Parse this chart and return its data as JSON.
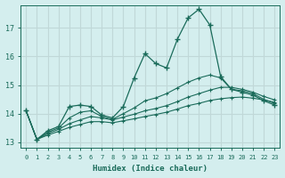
{
  "xlabel": "Humidex (Indice chaleur)",
  "bg_color": "#d4eeee",
  "grid_color": "#c0d8d8",
  "line_color": "#1a6b5a",
  "xlim": [
    -0.5,
    23.5
  ],
  "ylim": [
    12.8,
    17.8
  ],
  "yticks": [
    13,
    14,
    15,
    16,
    17
  ],
  "xticks": [
    0,
    1,
    2,
    3,
    4,
    5,
    6,
    7,
    8,
    9,
    10,
    11,
    12,
    13,
    14,
    15,
    16,
    17,
    18,
    19,
    20,
    21,
    22,
    23
  ],
  "line1_x": [
    0,
    1,
    2,
    3,
    4,
    5,
    6,
    7,
    8,
    9,
    10,
    11,
    12,
    13,
    14,
    15,
    16,
    17,
    18,
    19,
    20,
    21,
    22,
    23
  ],
  "line1_y": [
    14.1,
    13.1,
    13.4,
    13.55,
    14.25,
    14.3,
    14.25,
    13.95,
    13.85,
    14.25,
    15.25,
    16.1,
    15.75,
    15.6,
    16.6,
    17.35,
    17.65,
    17.1,
    15.3,
    14.85,
    14.75,
    14.65,
    14.45,
    14.3
  ],
  "line2_x": [
    0,
    1,
    2,
    3,
    4,
    5,
    6,
    7,
    8,
    9,
    10,
    11,
    12,
    13,
    14,
    15,
    16,
    17,
    18,
    19,
    20,
    21,
    22,
    23
  ],
  "line2_y": [
    14.1,
    13.1,
    13.35,
    13.5,
    13.85,
    14.05,
    14.1,
    13.9,
    13.8,
    14.0,
    14.2,
    14.45,
    14.55,
    14.7,
    14.9,
    15.1,
    15.25,
    15.35,
    15.25,
    14.85,
    14.8,
    14.7,
    14.5,
    14.35
  ],
  "line3_x": [
    0,
    1,
    2,
    3,
    4,
    5,
    6,
    7,
    8,
    9,
    10,
    11,
    12,
    13,
    14,
    15,
    16,
    17,
    18,
    19,
    20,
    21,
    22,
    23
  ],
  "line3_y": [
    14.1,
    13.1,
    13.3,
    13.45,
    13.65,
    13.78,
    13.9,
    13.85,
    13.78,
    13.88,
    13.98,
    14.1,
    14.18,
    14.28,
    14.42,
    14.58,
    14.7,
    14.82,
    14.92,
    14.92,
    14.85,
    14.75,
    14.6,
    14.48
  ],
  "line4_x": [
    0,
    1,
    2,
    3,
    4,
    5,
    6,
    7,
    8,
    9,
    10,
    11,
    12,
    13,
    14,
    15,
    16,
    17,
    18,
    19,
    20,
    21,
    22,
    23
  ],
  "line4_y": [
    14.1,
    13.1,
    13.25,
    13.38,
    13.52,
    13.62,
    13.72,
    13.72,
    13.68,
    13.75,
    13.82,
    13.9,
    13.97,
    14.05,
    14.16,
    14.28,
    14.36,
    14.46,
    14.52,
    14.56,
    14.58,
    14.54,
    14.48,
    14.4
  ]
}
